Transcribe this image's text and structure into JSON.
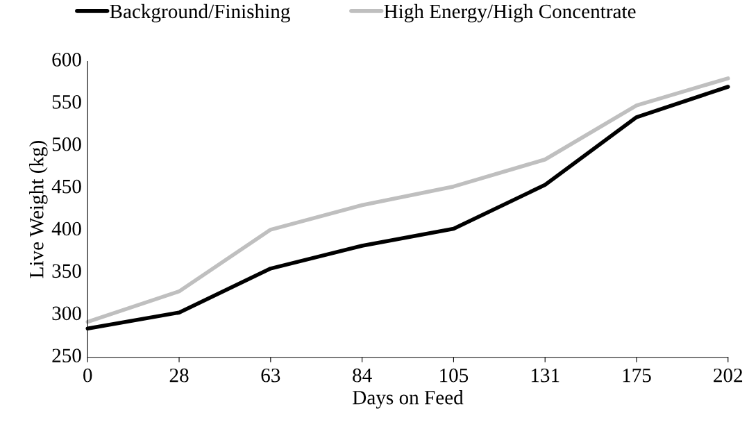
{
  "chart_data": {
    "type": "line",
    "xlabel": "Days on Feed",
    "ylabel": "Live Weight (kg)",
    "categories": [
      "0",
      "28",
      "63",
      "84",
      "105",
      "131",
      "175",
      "202"
    ],
    "series": [
      {
        "name": "Background/Finishing",
        "color": "#000000",
        "values": [
          284,
          303,
          355,
          382,
          402,
          454,
          534,
          570
        ]
      },
      {
        "name": "High Energy/High Concentrate",
        "color": "#bfbfbf",
        "values": [
          292,
          328,
          401,
          430,
          452,
          484,
          548,
          580
        ]
      }
    ],
    "ylim": [
      250,
      600
    ],
    "yticks": [
      250,
      300,
      350,
      400,
      450,
      500,
      550,
      600
    ],
    "grid": false,
    "legend": "top",
    "marker": "none",
    "line_style": "solid"
  }
}
